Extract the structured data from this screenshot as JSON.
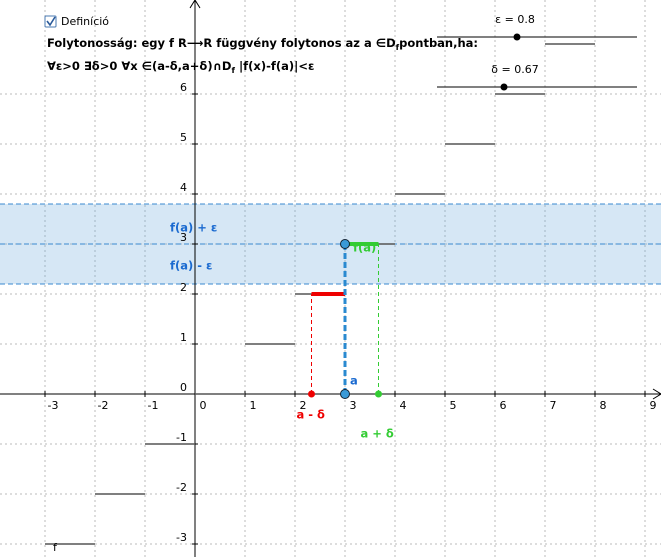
{
  "checkbox": {
    "label": "Definíció",
    "checked": true
  },
  "definition": {
    "line1": {
      "text": "Folytonosság: egy f R⟶R függvény folytonos az a ∈D",
      "sub": "f",
      "tail": "pontban,ha:"
    },
    "line2": {
      "text": "∀ε>0  ∃δ>0  ∀x ∈(a-δ,a+δ)∩D",
      "sub": "f",
      "tail": " |f(x)-f(a)|<ε"
    }
  },
  "sliders": [
    {
      "label": "ε = 0.8",
      "value": 0.8,
      "range": [
        0,
        2
      ]
    },
    {
      "label": "δ = 0.67",
      "value": 0.67,
      "range": [
        0,
        2
      ]
    }
  ],
  "axes": {
    "xlim": [
      -3.9,
      9.32
    ],
    "ylim": [
      -3.26,
      7.88
    ],
    "xticks": [
      -3,
      -2,
      -1,
      0,
      1,
      2,
      3,
      4,
      5,
      6,
      7,
      8,
      9
    ],
    "yticks": [
      -3,
      -2,
      -1,
      0,
      1,
      2,
      3,
      4,
      5,
      6
    ],
    "grid": true
  },
  "function": {
    "label": "f",
    "steps": [
      -3,
      -2,
      -1,
      0,
      1,
      2,
      3,
      4,
      5,
      6,
      7
    ]
  },
  "point": {
    "a": 3,
    "label": "a",
    "fa": 3,
    "fa_label": "f(a)",
    "upper_label": "f(a) + ε",
    "lower_label": "f(a) - ε",
    "left_label": "a - δ",
    "right_label": "a + δ"
  }
}
